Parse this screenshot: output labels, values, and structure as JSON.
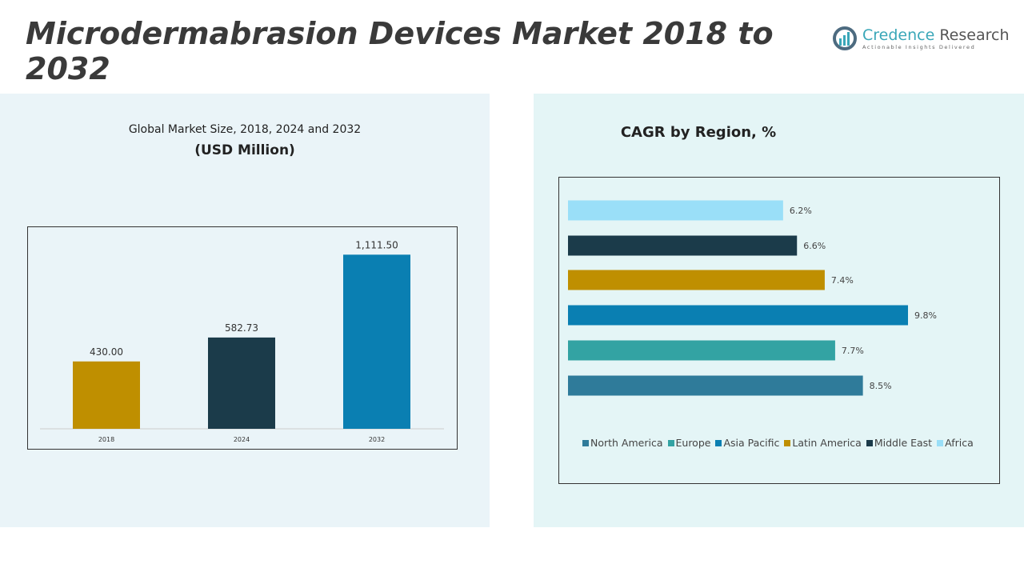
{
  "title": "Microdermabrasion Devices Market 2018 to 2032",
  "logo": {
    "name_part1": "Credence",
    "name_part2": "Research",
    "tagline": "Actionable Insights Delivered"
  },
  "chart_data": [
    {
      "type": "bar",
      "title": "Global Market Size, 2018, 2024 and 2032",
      "subtitle": "(USD Million)",
      "categories": [
        "2018",
        "2024",
        "2032"
      ],
      "values": [
        430.0,
        582.73,
        1111.5
      ],
      "value_labels": [
        "430.00",
        "582.73",
        "1,111.50"
      ],
      "colors": [
        "#bf8f00",
        "#1b3b4a",
        "#0a7fb2"
      ],
      "ylim": [
        0,
        1200
      ],
      "grid": false
    },
    {
      "type": "bar",
      "orientation": "horizontal",
      "title": "CAGR by Region, %",
      "categories": [
        "North America",
        "Europe",
        "Asia Pacific",
        "Latin America",
        "Middle East",
        "Africa"
      ],
      "values": [
        8.5,
        7.7,
        9.8,
        7.4,
        6.6,
        6.2
      ],
      "value_labels": [
        "8.5%",
        "7.7%",
        "9.8%",
        "7.4%",
        "6.6%",
        "6.2%"
      ],
      "colors": [
        "#2f7b9a",
        "#33a3a3",
        "#0a7fb2",
        "#bf8f00",
        "#1b3b4a",
        "#9adff8"
      ],
      "xlim": [
        0,
        11.5
      ],
      "legend": "bottom",
      "grid": false
    }
  ]
}
